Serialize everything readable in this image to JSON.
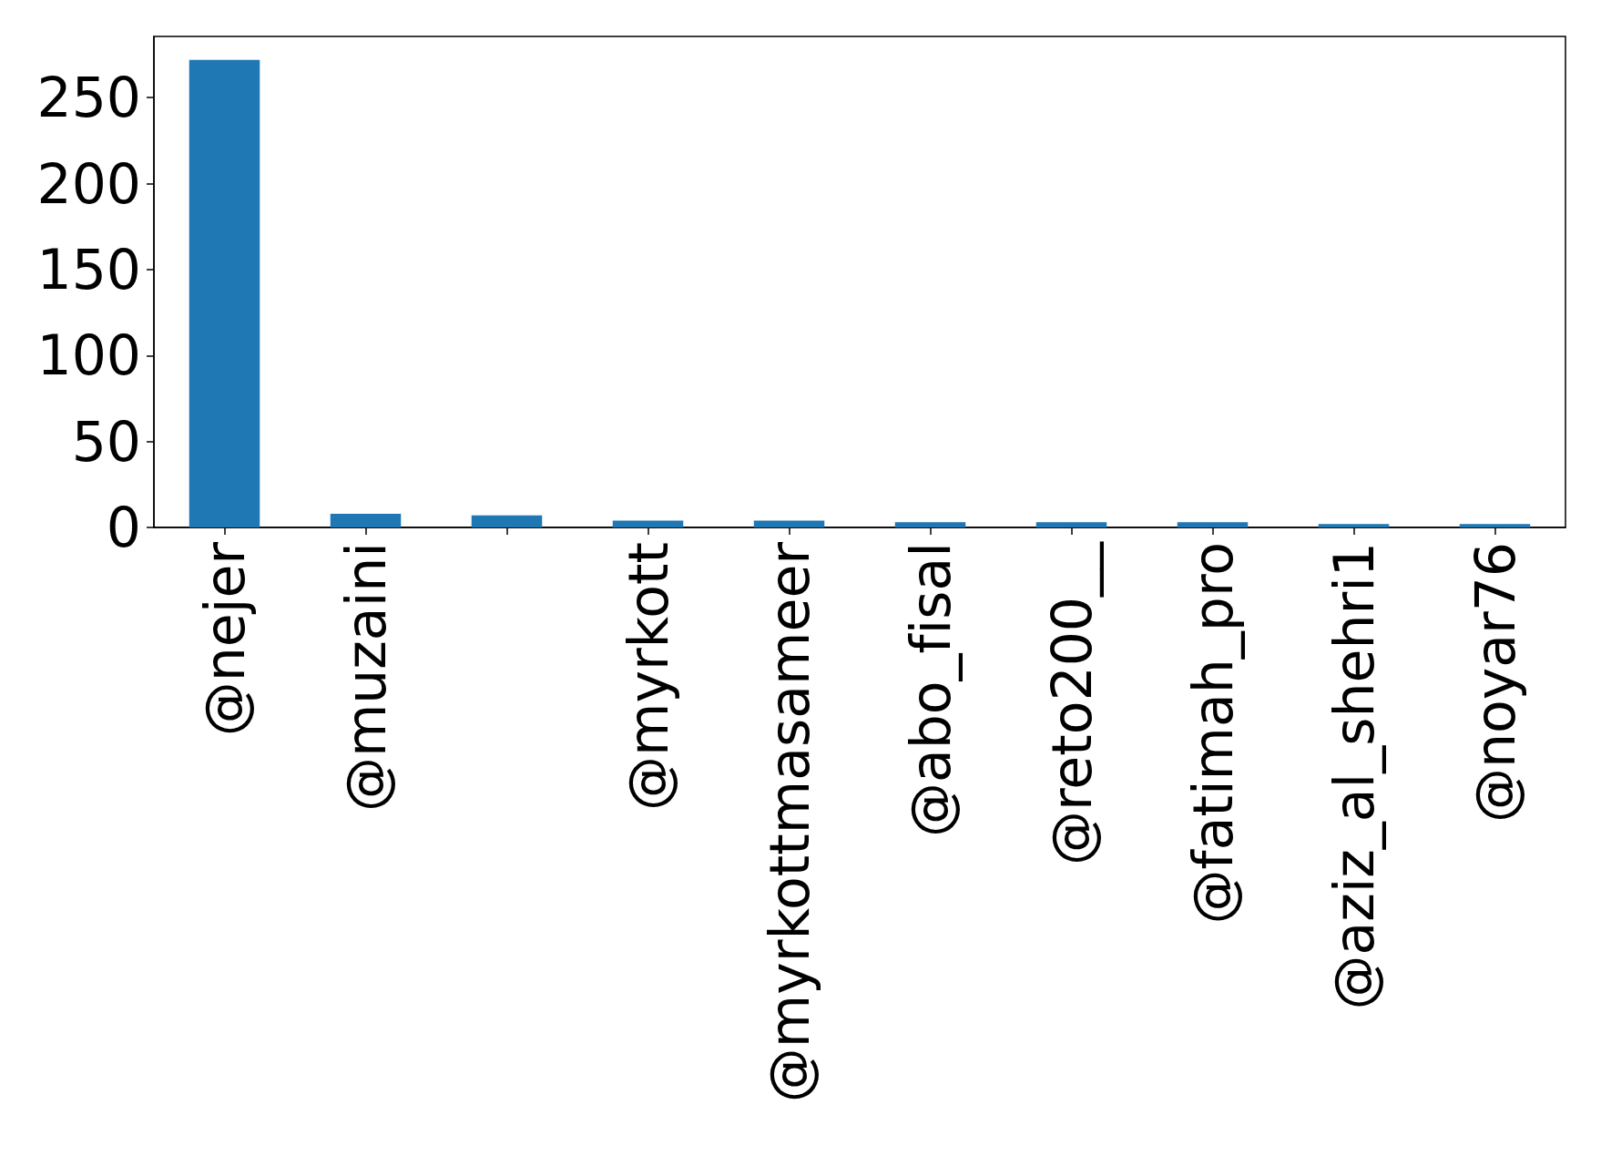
{
  "chart_data": {
    "type": "bar",
    "categories": [
      "@nejer",
      "@muzaini",
      null,
      "@myrkott",
      "@myrkottmasameer",
      "@abo_fisal",
      "@reto200__",
      "@fatimah_pro",
      "@aziz_al_shehri1",
      "@noyar76"
    ],
    "values": [
      272,
      8,
      7,
      4,
      4,
      3,
      3,
      3,
      2,
      2
    ],
    "color": "#1f77b4",
    "ylim": [
      0,
      285.6
    ],
    "yticks": [
      0,
      50,
      100,
      150,
      200,
      250
    ],
    "grid": false
  }
}
